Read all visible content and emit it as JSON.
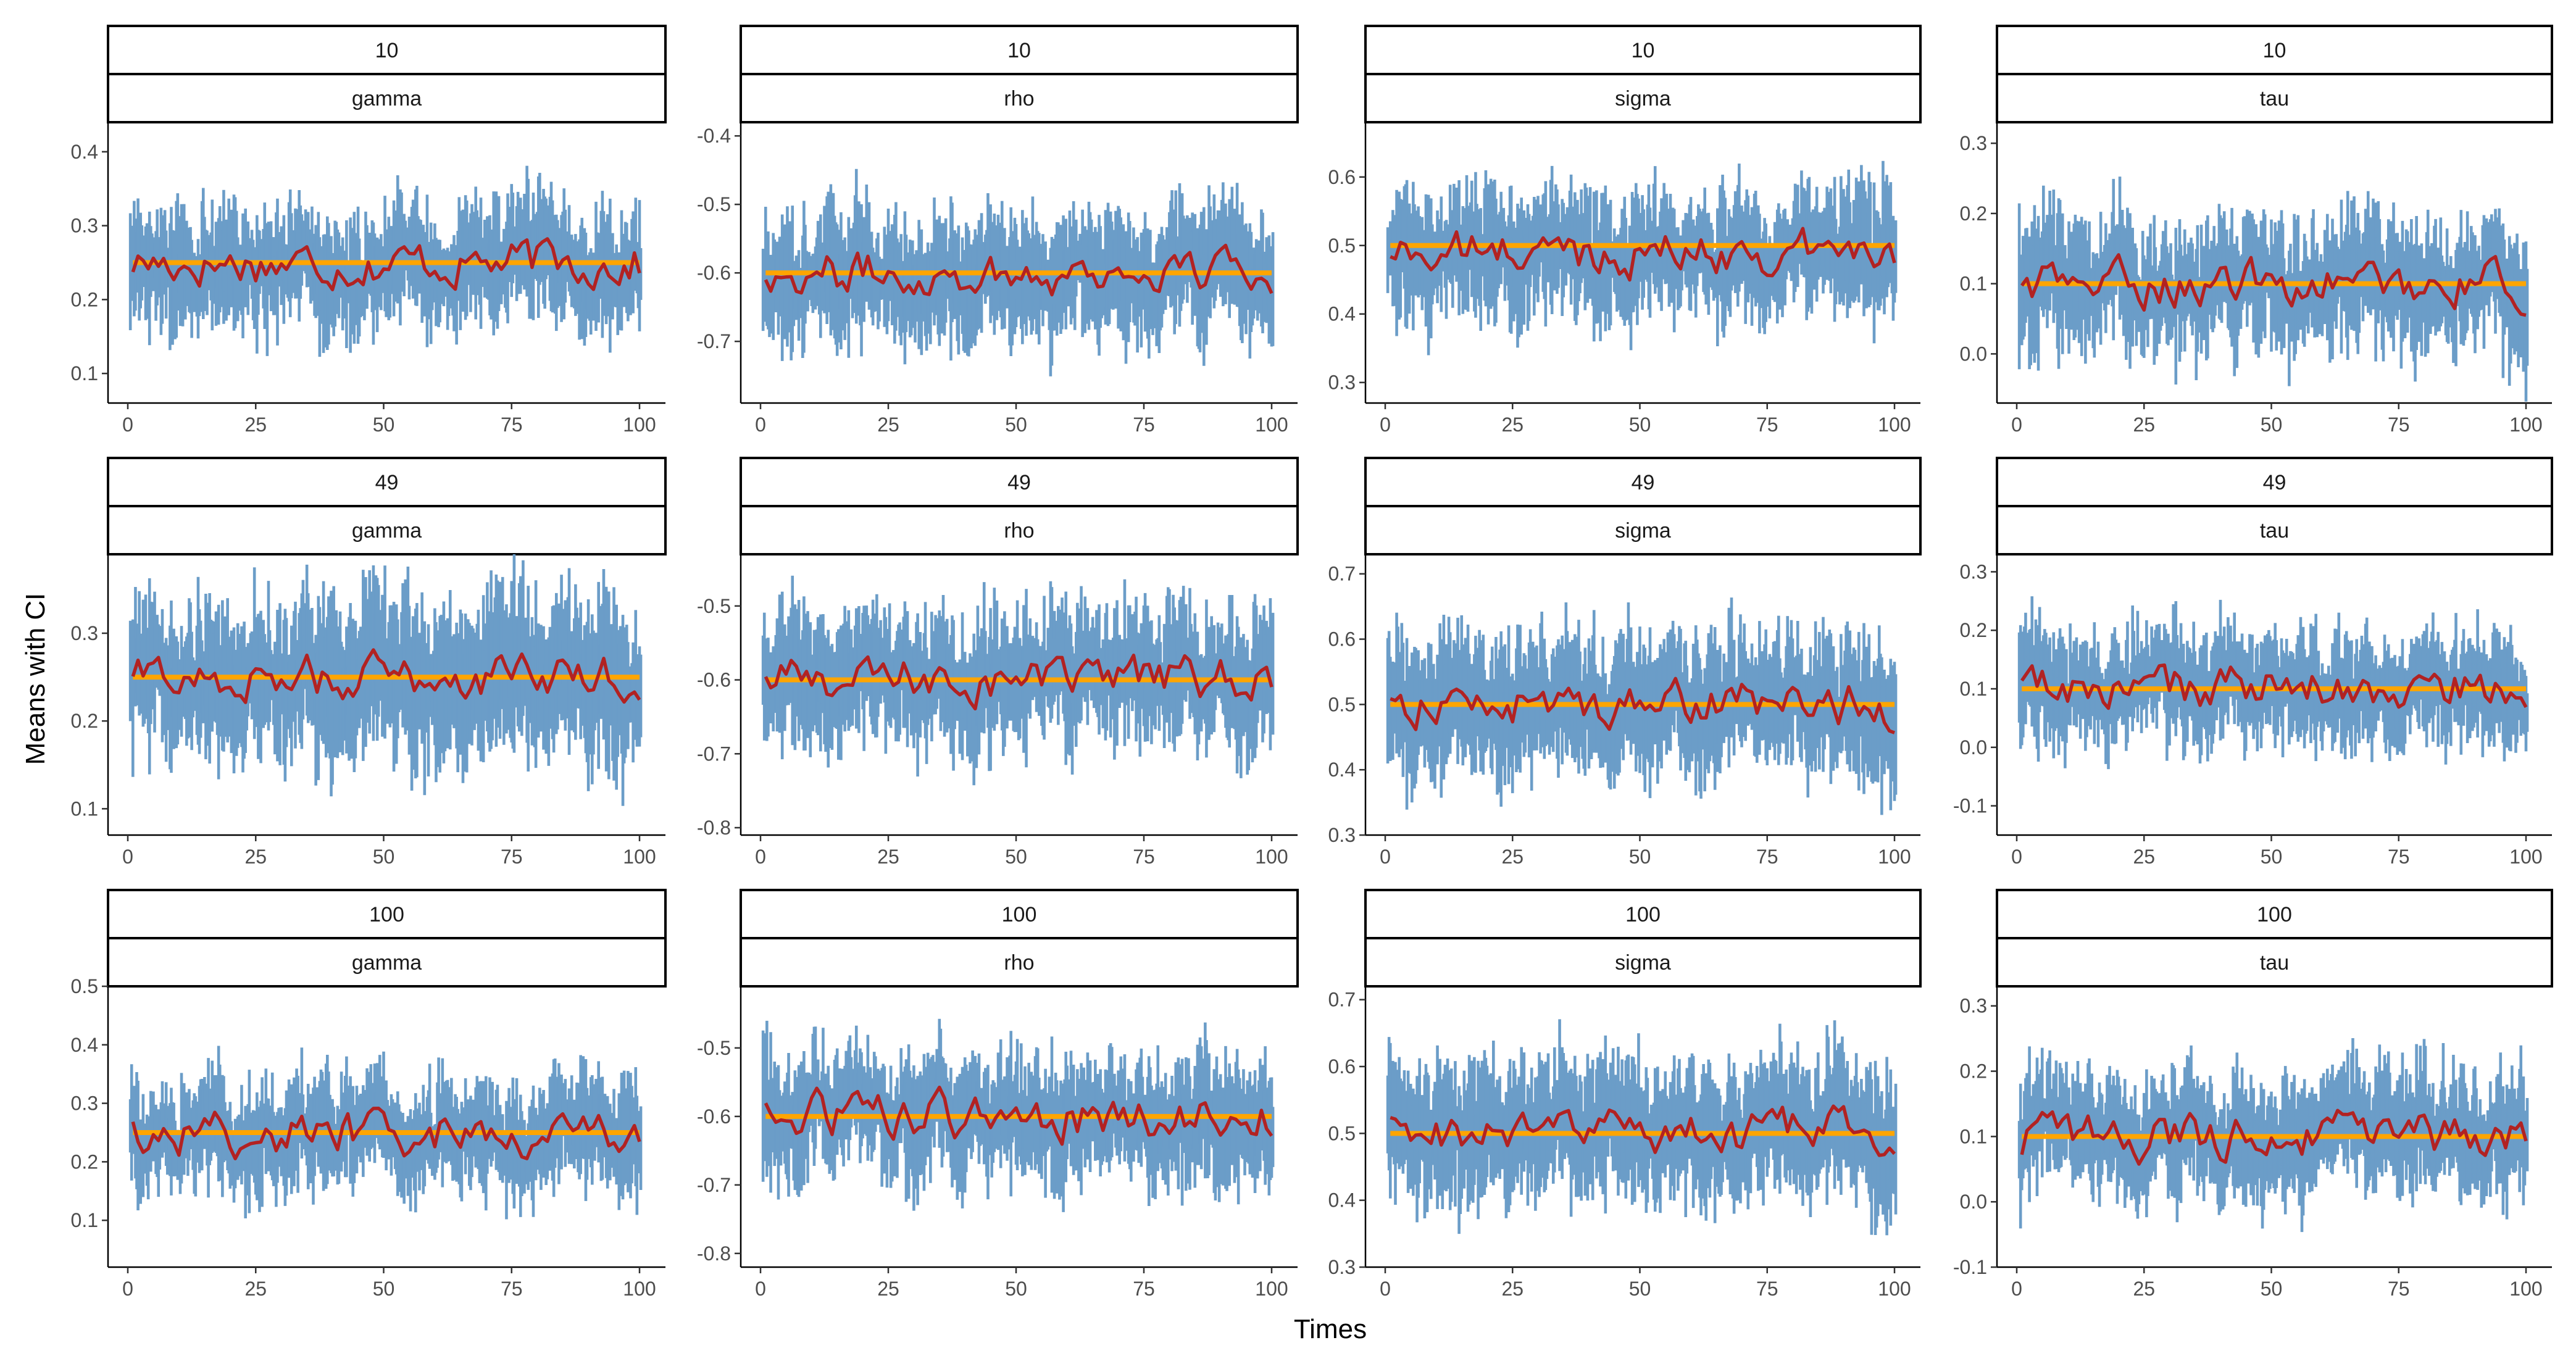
{
  "figure": {
    "xlabel": "Times",
    "ylabel": "Means with CI",
    "type": "line",
    "colors": {
      "ci_band": "#6b9dc8",
      "mean_line": "#b22222",
      "true_value_line": "#ffa500",
      "strip_border": "#000000"
    }
  },
  "chart_data": [
    {
      "row": "10",
      "param": "gamma",
      "true_value": 0.25,
      "mean_center": 0.25,
      "ci_halfwidth": 0.06,
      "ylim": [
        0.06,
        0.44
      ],
      "yticks": [
        0.1,
        0.2,
        0.3,
        0.4
      ],
      "xlim": [
        0,
        100
      ],
      "xticks": [
        0,
        25,
        50,
        75,
        100
      ]
    },
    {
      "row": "10",
      "param": "rho",
      "true_value": -0.6,
      "mean_center": -0.6,
      "ci_halfwidth": 0.07,
      "ylim": [
        -0.79,
        -0.38
      ],
      "yticks": [
        -0.7,
        -0.6,
        -0.5,
        -0.4
      ],
      "xlim": [
        0,
        100
      ],
      "xticks": [
        0,
        25,
        50,
        75,
        100
      ]
    },
    {
      "row": "10",
      "param": "sigma",
      "true_value": 0.5,
      "mean_center": 0.49,
      "ci_halfwidth": 0.07,
      "ylim": [
        0.27,
        0.68
      ],
      "yticks": [
        0.3,
        0.4,
        0.5,
        0.6
      ],
      "xlim": [
        0,
        100
      ],
      "xticks": [
        0,
        25,
        50,
        75,
        100
      ]
    },
    {
      "row": "10",
      "param": "tau",
      "true_value": 0.1,
      "mean_center": 0.1,
      "ci_halfwidth": 0.07,
      "ylim": [
        -0.07,
        0.33
      ],
      "yticks": [
        0.0,
        0.1,
        0.2,
        0.3
      ],
      "xlim": [
        0,
        100
      ],
      "xticks": [
        0,
        25,
        50,
        75,
        100
      ]
    },
    {
      "row": "49",
      "param": "gamma",
      "true_value": 0.25,
      "mean_center": 0.25,
      "ci_halfwidth": 0.07,
      "ylim": [
        0.07,
        0.39
      ],
      "yticks": [
        0.1,
        0.2,
        0.3
      ],
      "xlim": [
        0,
        100
      ],
      "xticks": [
        0,
        25,
        50,
        75,
        100
      ]
    },
    {
      "row": "49",
      "param": "rho",
      "true_value": -0.6,
      "mean_center": -0.6,
      "ci_halfwidth": 0.07,
      "ylim": [
        -0.81,
        -0.43
      ],
      "yticks": [
        -0.8,
        -0.7,
        -0.6,
        -0.5
      ],
      "xlim": [
        0,
        100
      ],
      "xticks": [
        0,
        25,
        50,
        75,
        100
      ]
    },
    {
      "row": "49",
      "param": "sigma",
      "true_value": 0.5,
      "mean_center": 0.5,
      "ci_halfwidth": 0.08,
      "ylim": [
        0.3,
        0.73
      ],
      "yticks": [
        0.3,
        0.4,
        0.5,
        0.6,
        0.7
      ],
      "xlim": [
        0,
        100
      ],
      "xticks": [
        0,
        25,
        50,
        75,
        100
      ]
    },
    {
      "row": "49",
      "param": "tau",
      "true_value": 0.1,
      "mean_center": 0.1,
      "ci_halfwidth": 0.07,
      "ylim": [
        -0.15,
        0.33
      ],
      "yticks": [
        -0.1,
        0.0,
        0.1,
        0.2,
        0.3
      ],
      "xlim": [
        0,
        100
      ],
      "xticks": [
        0,
        25,
        50,
        75,
        100
      ]
    },
    {
      "row": "100",
      "param": "gamma",
      "true_value": 0.25,
      "mean_center": 0.25,
      "ci_halfwidth": 0.07,
      "ylim": [
        0.02,
        0.5
      ],
      "yticks": [
        0.1,
        0.2,
        0.3,
        0.4,
        0.5
      ],
      "xlim": [
        0,
        100
      ],
      "xticks": [
        0,
        25,
        50,
        75,
        100
      ]
    },
    {
      "row": "100",
      "param": "rho",
      "true_value": -0.6,
      "mean_center": -0.6,
      "ci_halfwidth": 0.07,
      "ylim": [
        -0.82,
        -0.41
      ],
      "yticks": [
        -0.8,
        -0.7,
        -0.6,
        -0.5
      ],
      "xlim": [
        0,
        100
      ],
      "xticks": [
        0,
        25,
        50,
        75,
        100
      ]
    },
    {
      "row": "100",
      "param": "sigma",
      "true_value": 0.5,
      "mean_center": 0.5,
      "ci_halfwidth": 0.08,
      "ylim": [
        0.3,
        0.72
      ],
      "yticks": [
        0.3,
        0.4,
        0.5,
        0.6,
        0.7
      ],
      "xlim": [
        0,
        100
      ],
      "xticks": [
        0,
        25,
        50,
        75,
        100
      ]
    },
    {
      "row": "100",
      "param": "tau",
      "true_value": 0.1,
      "mean_center": 0.1,
      "ci_halfwidth": 0.07,
      "ylim": [
        -0.1,
        0.33
      ],
      "yticks": [
        -0.1,
        0.0,
        0.1,
        0.2,
        0.3
      ],
      "xlim": [
        0,
        100
      ],
      "xticks": [
        0,
        25,
        50,
        75,
        100
      ]
    }
  ]
}
